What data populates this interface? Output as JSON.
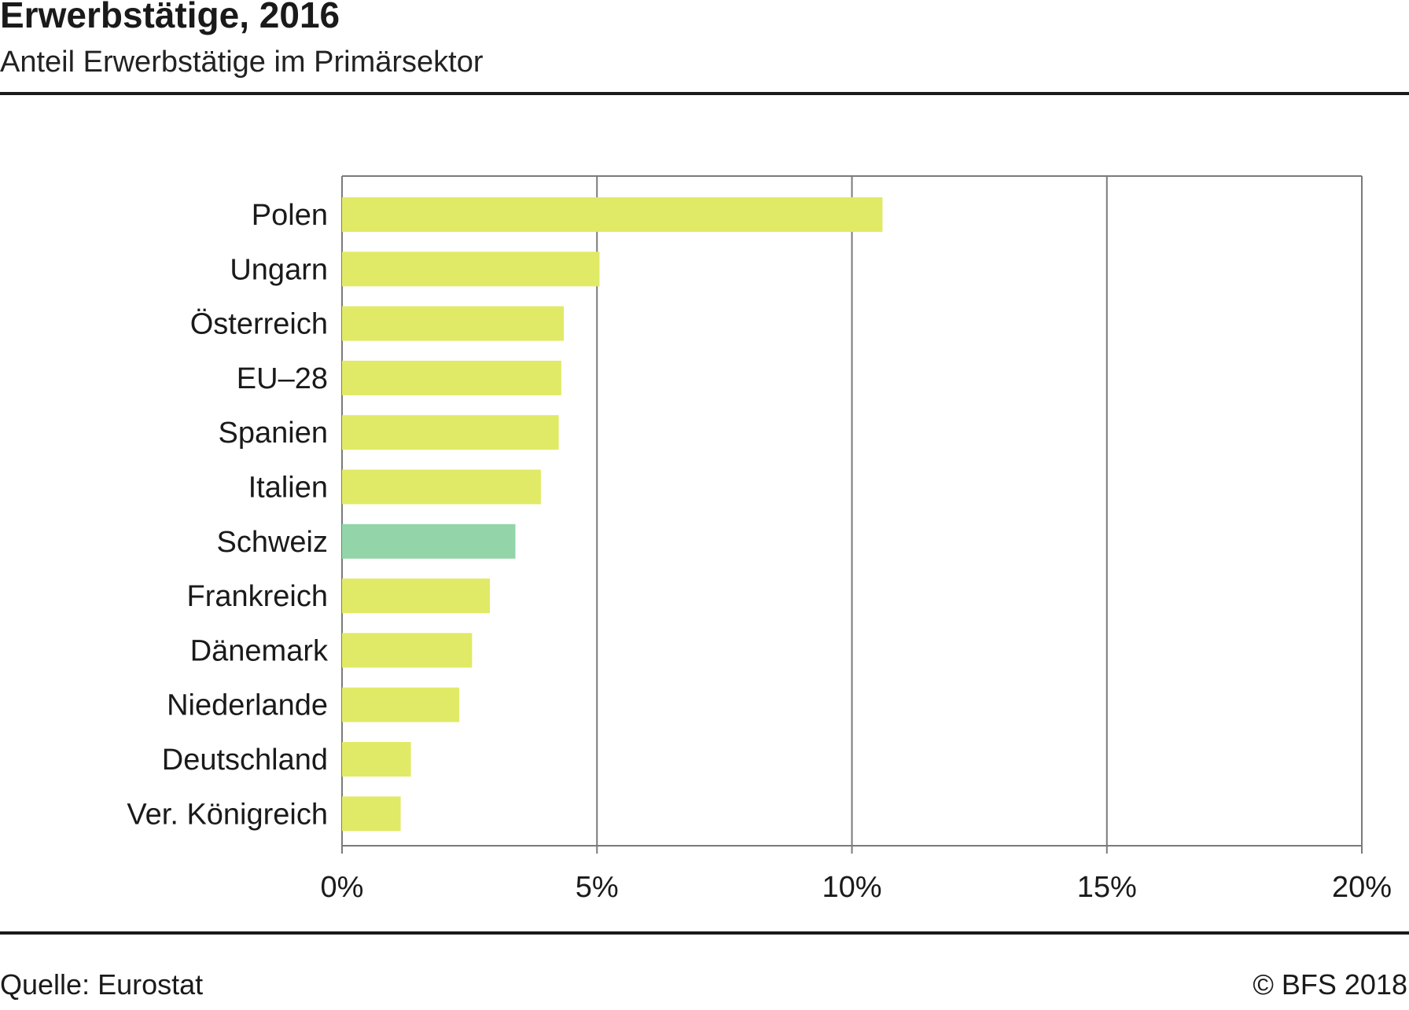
{
  "header": {
    "title": "Erwerbstätige, 2016",
    "subtitle": "Anteil Erwerbstätige im Primärsektor"
  },
  "footer": {
    "source": "Quelle: Eurostat",
    "copyright": "© BFS  2018"
  },
  "colors": {
    "bar_default": "#e0ea66",
    "bar_highlight": "#93d5a8",
    "grid": "#7a7a7a",
    "axis": "#7a7a7a"
  },
  "chart_data": {
    "type": "bar",
    "orientation": "horizontal",
    "title": "Erwerbstätige, 2016",
    "subtitle": "Anteil Erwerbstätige im Primärsektor",
    "categories": [
      "Polen",
      "Ungarn",
      "Österreich",
      "EU–28",
      "Spanien",
      "Italien",
      "Schweiz",
      "Frankreich",
      "Dänemark",
      "Niederlande",
      "Deutschland",
      "Ver. Königreich"
    ],
    "values": [
      10.6,
      5.05,
      4.35,
      4.3,
      4.25,
      3.9,
      3.4,
      2.9,
      2.55,
      2.3,
      1.35,
      1.15
    ],
    "highlight": [
      "Schweiz"
    ],
    "xlim": [
      0,
      20
    ],
    "xticks": [
      0,
      5,
      10,
      15,
      20
    ],
    "xtick_labels": [
      "0%",
      "5%",
      "10%",
      "15%",
      "20%"
    ],
    "grid": true,
    "xlabel": "",
    "ylabel": ""
  }
}
